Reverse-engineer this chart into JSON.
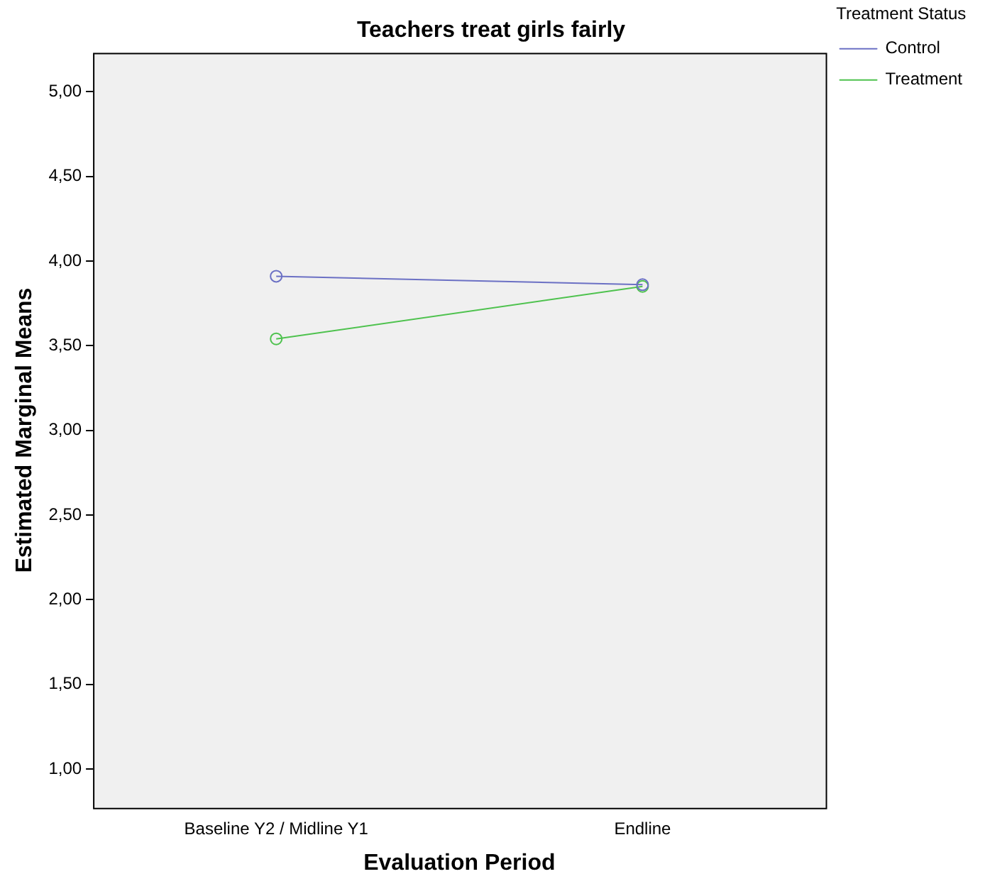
{
  "chart_data": {
    "type": "line",
    "title": "Teachers treat girls fairly",
    "xlabel": "Evaluation Period",
    "ylabel": "Estimated Marginal Means",
    "legend_title": "Treatment Status",
    "categories": [
      "Baseline Y2 / Midline Y1",
      "Endline"
    ],
    "series": [
      {
        "name": "Control",
        "color": "#6b70c4",
        "values": [
          3.91,
          3.86
        ]
      },
      {
        "name": "Treatment",
        "color": "#4ec24e",
        "values": [
          3.54,
          3.85
        ]
      }
    ],
    "ylim": [
      0.77,
      5.23
    ],
    "yticks": [
      {
        "value": 1,
        "label": "1,00"
      },
      {
        "value": 1.5,
        "label": "1,50"
      },
      {
        "value": 2,
        "label": "2,00"
      },
      {
        "value": 2.5,
        "label": "2,50"
      },
      {
        "value": 3,
        "label": "3,00"
      },
      {
        "value": 3.5,
        "label": "3,50"
      },
      {
        "value": 4,
        "label": "4,00"
      },
      {
        "value": 4.5,
        "label": "4,50"
      },
      {
        "value": 5,
        "label": "5,00"
      }
    ],
    "grid": false,
    "legend": "top right",
    "marker": "circle",
    "line_style": "solid"
  }
}
